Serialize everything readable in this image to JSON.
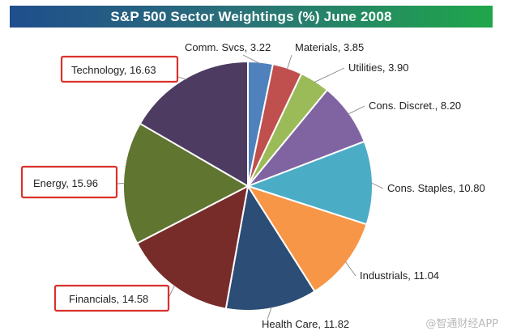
{
  "chart_data": {
    "type": "pie",
    "title": "S&P 500 Sector Weightings (%) June 2008",
    "slices": [
      {
        "label": "Comm. Svcs",
        "value": 3.22,
        "color": "#4f81bd",
        "text": "Comm. Svcs, 3.22",
        "highlight": false
      },
      {
        "label": "Materials",
        "value": 3.85,
        "color": "#c0504d",
        "text": "Materials, 3.85",
        "highlight": false
      },
      {
        "label": "Utilities",
        "value": 3.9,
        "color": "#9bbb59",
        "text": "Utilities, 3.90",
        "highlight": false
      },
      {
        "label": "Cons. Discret.",
        "value": 8.2,
        "color": "#8064a2",
        "text": "Cons. Discret., 8.20",
        "highlight": false
      },
      {
        "label": "Cons. Staples",
        "value": 10.8,
        "color": "#4bacc6",
        "text": "Cons. Staples, 10.80",
        "highlight": false
      },
      {
        "label": "Industrials",
        "value": 11.04,
        "color": "#f79646",
        "text": "Industrials, 11.04",
        "highlight": false
      },
      {
        "label": "Health Care",
        "value": 11.82,
        "color": "#2c4d75",
        "text": "Health Care, 11.82",
        "highlight": false
      },
      {
        "label": "Financials",
        "value": 14.58,
        "color": "#772c2a",
        "text": "Financials, 14.58",
        "highlight": true
      },
      {
        "label": "Energy",
        "value": 15.96,
        "color": "#5f7530",
        "text": "Energy, 15.96",
        "highlight": true
      },
      {
        "label": "Technology",
        "value": 16.63,
        "color": "#4d3b62",
        "text": "Technology, 16.63",
        "highlight": true
      }
    ]
  },
  "watermark": "@智通财经APP"
}
